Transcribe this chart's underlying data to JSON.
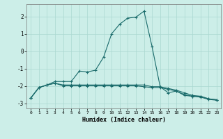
{
  "xlabel": "Humidex (Indice chaleur)",
  "bg_color": "#cceee8",
  "line_color": "#1a6b6b",
  "grid_color": "#aad8d0",
  "xlim": [
    -0.5,
    23.5
  ],
  "ylim": [
    -3.3,
    2.7
  ],
  "yticks": [
    -3,
    -2,
    -1,
    0,
    1,
    2
  ],
  "xticks": [
    0,
    1,
    2,
    3,
    4,
    5,
    6,
    7,
    8,
    9,
    10,
    11,
    12,
    13,
    14,
    15,
    16,
    17,
    18,
    19,
    20,
    21,
    22,
    23
  ],
  "line1_x": [
    0,
    1,
    2,
    3,
    4,
    5,
    6,
    7,
    8,
    9,
    10,
    11,
    12,
    13,
    14,
    15,
    16,
    17,
    18,
    19,
    20,
    21,
    22,
    23
  ],
  "line1_y": [
    -2.7,
    -2.1,
    -1.95,
    -1.75,
    -1.75,
    -1.75,
    -1.15,
    -1.2,
    -1.1,
    -0.35,
    1.0,
    1.55,
    1.9,
    1.95,
    2.3,
    0.25,
    -2.05,
    -2.4,
    -2.3,
    -2.55,
    -2.6,
    -2.6,
    -2.75,
    -2.8
  ],
  "line2_x": [
    0,
    1,
    2,
    3,
    4,
    5,
    6,
    7,
    8,
    9,
    10,
    11,
    12,
    13,
    14,
    15,
    16,
    17,
    18,
    19,
    20,
    21,
    22,
    23
  ],
  "line2_y": [
    -2.7,
    -2.1,
    -1.95,
    -1.85,
    -1.95,
    -1.95,
    -1.95,
    -1.95,
    -1.95,
    -1.95,
    -1.95,
    -1.95,
    -1.95,
    -1.95,
    -1.95,
    -2.05,
    -2.05,
    -2.15,
    -2.25,
    -2.4,
    -2.55,
    -2.6,
    -2.75,
    -2.8
  ],
  "line3_x": [
    0,
    1,
    2,
    3,
    4,
    5,
    6,
    7,
    8,
    9,
    10,
    11,
    12,
    13,
    14,
    15,
    16,
    17,
    18,
    19,
    20,
    21,
    22,
    23
  ],
  "line3_y": [
    -2.7,
    -2.1,
    -1.95,
    -1.85,
    -2.0,
    -2.0,
    -2.0,
    -2.0,
    -2.0,
    -2.0,
    -2.0,
    -2.0,
    -2.0,
    -2.0,
    -2.05,
    -2.1,
    -2.1,
    -2.2,
    -2.3,
    -2.5,
    -2.6,
    -2.65,
    -2.78,
    -2.83
  ]
}
